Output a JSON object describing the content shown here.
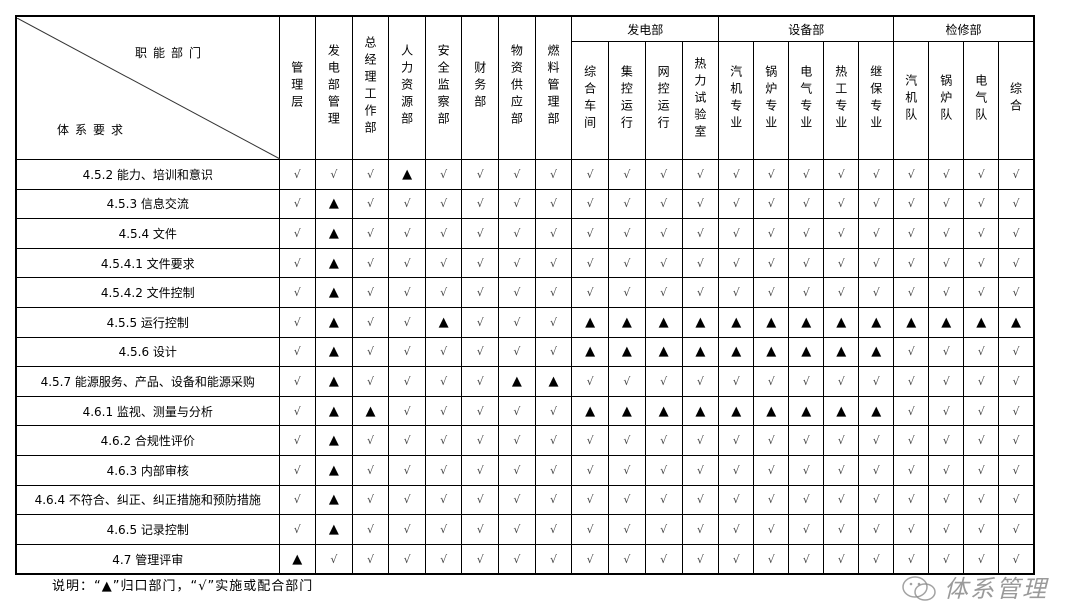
{
  "header": {
    "corner_top": "职能部门",
    "corner_bottom": "体系要求",
    "single_columns": [
      "管理层",
      "发电部管理",
      "总经理工作部",
      "人力资源部",
      "安全监察部",
      "财务部",
      "物资供应部",
      "燃料管理部"
    ],
    "groups": [
      {
        "label": "发电部",
        "columns": [
          "综合车间",
          "集控运行",
          "网控运行",
          "热力试验室"
        ]
      },
      {
        "label": "设备部",
        "columns": [
          "汽机专业",
          "锅炉专业",
          "电气专业",
          "热工专业",
          "继保专业"
        ]
      },
      {
        "label": "检修部",
        "columns": [
          "汽机队",
          "锅炉队",
          "电气队",
          "综合"
        ]
      }
    ]
  },
  "symbols": {
    "lead": "▲",
    "support": "√"
  },
  "rows": [
    {
      "label": "4.5.2 能力、培训和意识",
      "marks": "SSSLSSSSSSSSSSSSSSSSS"
    },
    {
      "label": "4.5.3 信息交流",
      "marks": "SLSSSSSSSSSSSSSSSSSSS"
    },
    {
      "label": "4.5.4 文件",
      "marks": "SLSSSSSSSSSSSSSSSSSSS"
    },
    {
      "label": "4.5.4.1 文件要求",
      "marks": "SLSSSSSSSSSSSSSSSSSSS"
    },
    {
      "label": "4.5.4.2 文件控制",
      "marks": "SLSSSSSSSSSSSSSSSSSSS"
    },
    {
      "label": "4.5.5 运行控制",
      "marks": "SLSSLSSSLLLLLLLLLLLLL"
    },
    {
      "label": "4.5.6 设计",
      "marks": "SLSSSSSSLLLLLLLLLSSSS"
    },
    {
      "label": "4.5.7 能源服务、产品、设备和能源采购",
      "marks": "SLSSSSLLSSSSSSSSSSSSS"
    },
    {
      "label": "4.6.1 监视、测量与分析",
      "marks": "SLLSSSSSLLLLLLLLLSSSS"
    },
    {
      "label": "4.6.2 合规性评价",
      "marks": "SLSSSSSSSSSSSSSSSSSSS"
    },
    {
      "label": "4.6.3 内部审核",
      "marks": "SLSSSSSSSSSSSSSSSSSSS"
    },
    {
      "label": "4.6.4 不符合、纠正、纠正措施和预防措施",
      "marks": "SLSSSSSSSSSSSSSSSSSSS"
    },
    {
      "label": "4.6.5 记录控制",
      "marks": "SLSSSSSSSSSSSSSSSSSSS"
    },
    {
      "label": "4.7 管理评审",
      "marks": "LSSSSSSSSSSSSSSSSSSSS"
    }
  ],
  "caption": "说明：“▲”归口部门，“√”实施或配合部门",
  "watermark": "体系管理"
}
